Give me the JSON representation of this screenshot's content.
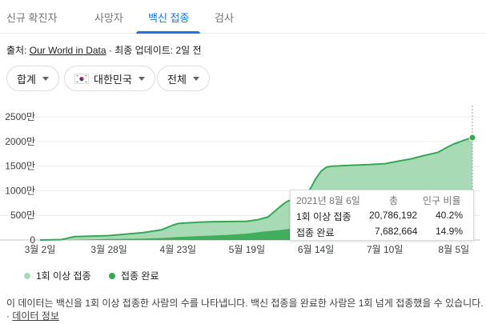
{
  "tabs": [
    {
      "label": "신규 확진자"
    },
    {
      "label": "사망자"
    },
    {
      "label": "백신 접종"
    },
    {
      "label": "검사"
    }
  ],
  "source": {
    "prefix": "출처: ",
    "link": "Our World in Data",
    "suffix": " · 최종 업데이트: 2일 전"
  },
  "filters": {
    "metric": "합계",
    "country": "대한민국",
    "scope": "전체"
  },
  "tooltip": {
    "date": "2021년 8월 6일",
    "col_total": "총",
    "col_ratio": "인구 비율",
    "rows": [
      {
        "label": "1회 이상 접종",
        "total": "20,786,192",
        "ratio": "40.2%"
      },
      {
        "label": "접종 완료",
        "total": "7,682,664",
        "ratio": "14.9%"
      }
    ]
  },
  "legend": {
    "first": "1회 이상 접종",
    "full": "접종 완료"
  },
  "note": {
    "text": "이 데이터는 백신을 1회 이상 접종한 사람의 수를 나타냅니다. 백신 접종을 완료한 사람은 1회 넘게 접종했을 수 있습니다. · ",
    "link": "데이터 정보"
  },
  "colors": {
    "accent": "#1a73e8",
    "first_dose_fill": "#a8dab5",
    "full_fill": "#34a853",
    "line": "#34a853"
  },
  "chart_data": {
    "type": "area",
    "unit": "만",
    "ylim": [
      0,
      2600
    ],
    "yticks": [
      0,
      500,
      1000,
      1500,
      2000,
      2500
    ],
    "ytick_labels": [
      "0",
      "500만",
      "1000만",
      "1500만",
      "2000만",
      "2500만"
    ],
    "xlim": [
      0,
      163
    ],
    "xticks": [
      {
        "day": 0,
        "label": "3월 2일"
      },
      {
        "day": 26,
        "label": "3월 28일"
      },
      {
        "day": 52,
        "label": "4월 23일"
      },
      {
        "day": 78,
        "label": "5월 19일"
      },
      {
        "day": 104,
        "label": "6월 14일"
      },
      {
        "day": 130,
        "label": "7월 10일"
      },
      {
        "day": 156,
        "label": "8월 5일"
      }
    ],
    "grid": true,
    "legend": "bottom",
    "series": [
      {
        "name": "1회 이상 접종",
        "x": [
          0,
          8,
          13,
          26,
          39,
          46,
          50,
          52,
          56,
          60,
          64,
          78,
          82,
          86,
          88,
          91,
          93,
          95,
          97,
          100,
          102,
          104,
          106,
          108,
          110,
          114,
          118,
          124,
          130,
          135,
          140,
          145,
          150,
          154,
          156,
          160,
          163
        ],
        "values": [
          0,
          8,
          70,
          90,
          150,
          210,
          300,
          335,
          350,
          360,
          370,
          380,
          410,
          470,
          560,
          700,
          780,
          820,
          830,
          900,
          1050,
          1250,
          1400,
          1480,
          1500,
          1510,
          1520,
          1530,
          1550,
          1600,
          1650,
          1720,
          1780,
          1900,
          1950,
          2030,
          2079
        ]
      },
      {
        "name": "접종 완료",
        "x": [
          0,
          13,
          26,
          39,
          46,
          52,
          60,
          70,
          78,
          84,
          90,
          95,
          100,
          104,
          110,
          120,
          130,
          140,
          150,
          156,
          163
        ],
        "values": [
          0,
          5,
          20,
          30,
          40,
          60,
          80,
          100,
          130,
          170,
          200,
          230,
          270,
          300,
          330,
          360,
          420,
          520,
          620,
          700,
          768
        ]
      }
    ]
  }
}
